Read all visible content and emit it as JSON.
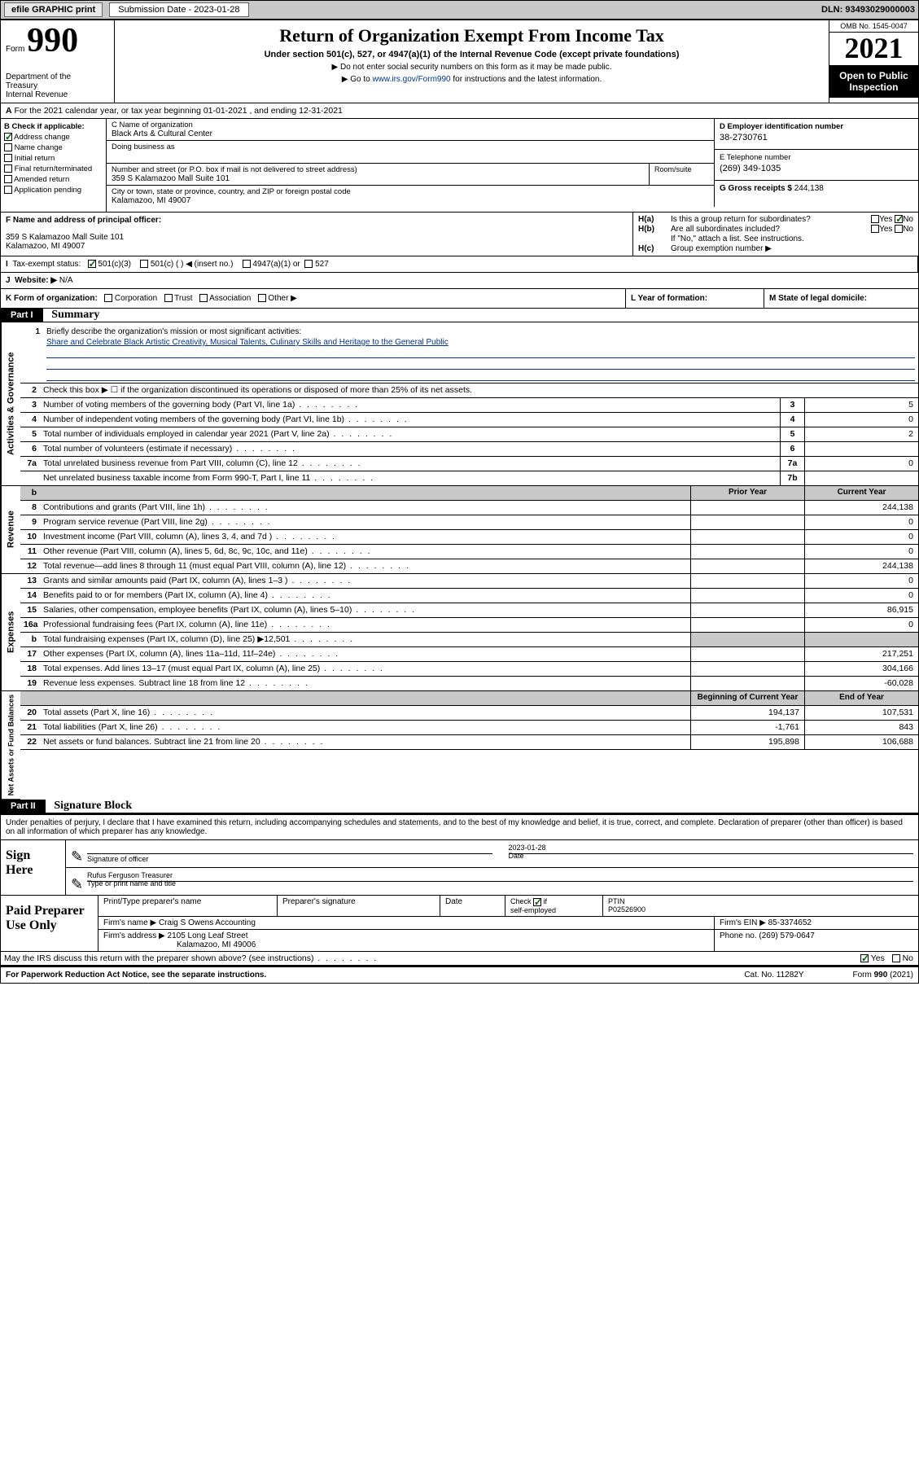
{
  "topbar": {
    "efile": "efile GRAPHIC print",
    "submission_label": "Submission Date - 2023-01-28",
    "dln_label": "DLN: 93493029000003"
  },
  "header": {
    "form_label": "Form",
    "form_number": "990",
    "title": "Return of Organization Exempt From Income Tax",
    "subtitle": "Under section 501(c), 527, or 4947(a)(1) of the Internal Revenue Code (except private foundations)",
    "note1": "Do not enter social security numbers on this form as it may be made public.",
    "note2_prefix": "Go to ",
    "note2_link": "www.irs.gov/Form990",
    "note2_suffix": " for instructions and the latest information.",
    "dept": "Department of the Treasury\nInternal Revenue Service",
    "omb": "OMB No. 1545-0047",
    "year": "2021",
    "open_public": "Open to Public Inspection"
  },
  "line_a": {
    "prefix": "A",
    "text": "For the 2021 calendar year, or tax year beginning 01-01-2021    , and ending 12-31-2021"
  },
  "section_b": {
    "label": "B Check if applicable:",
    "items": [
      "Address change",
      "Name change",
      "Initial return",
      "Final return/terminated",
      "Amended return",
      "Application pending"
    ],
    "checked_idx": 0
  },
  "section_c": {
    "name_label": "C Name of organization",
    "name": "Black Arts & Cultural Center",
    "dba_label": "Doing business as",
    "addr_label": "Number and street (or P.O. box if mail is not delivered to street address)",
    "addr": "359 S Kalamazoo Mall Suite 101",
    "room_label": "Room/suite",
    "city_label": "City or town, state or province, country, and ZIP or foreign postal code",
    "city": "Kalamazoo, MI  49007"
  },
  "section_d": {
    "ein_label": "D Employer identification number",
    "ein": "38-2730761",
    "phone_label": "E Telephone number",
    "phone": "(269) 349-1035",
    "gross_label": "G Gross receipts $",
    "gross": "244,138"
  },
  "section_f": {
    "label": "F  Name and address of principal officer:",
    "addr1": "359 S Kalamazoo Mall Suite 101",
    "addr2": "Kalamazoo, MI  49007"
  },
  "section_h": {
    "ha_label": "H(a)",
    "ha_text": "Is this a group return for subordinates?",
    "hb_label": "H(b)",
    "hb_text": "Are all subordinates included?",
    "hb_note": "If \"No,\" attach a list. See instructions.",
    "hc_label": "H(c)",
    "hc_text": "Group exemption number ▶",
    "yes": "Yes",
    "no": "No"
  },
  "section_i": {
    "label": "I",
    "text": "Tax-exempt status:",
    "opt1": "501(c)(3)",
    "opt2": "501(c) (   ) ◀ (insert no.)",
    "opt3": "4947(a)(1) or",
    "opt4": "527"
  },
  "section_j": {
    "label": "J",
    "text": "Website: ▶",
    "val": "N/A"
  },
  "section_k": {
    "label": "K Form of organization:",
    "opts": [
      "Corporation",
      "Trust",
      "Association",
      "Other ▶"
    ],
    "l_label": "L Year of formation:",
    "m_label": "M State of legal domicile:"
  },
  "part1": {
    "header": "Part I",
    "title": "Summary"
  },
  "tabs": {
    "gov": "Activities & Governance",
    "rev": "Revenue",
    "exp": "Expenses",
    "net": "Net Assets or Fund Balances"
  },
  "q1": {
    "num": "1",
    "text": "Briefly describe the organization's mission or most significant activities:",
    "mission": "Share and Celebrate Black Artistic Creativity, Musical Talents, Culinary Skills and Heritage to the General Public"
  },
  "q2": {
    "num": "2",
    "text": "Check this box ▶ ☐  if the organization discontinued its operations or disposed of more than 25% of its net assets."
  },
  "rows_gov": [
    {
      "num": "3",
      "text": "Number of voting members of the governing body (Part VI, line 1a)",
      "ln": "3",
      "val": "5"
    },
    {
      "num": "4",
      "text": "Number of independent voting members of the governing body (Part VI, line 1b)",
      "ln": "4",
      "val": "0"
    },
    {
      "num": "5",
      "text": "Total number of individuals employed in calendar year 2021 (Part V, line 2a)",
      "ln": "5",
      "val": "2"
    },
    {
      "num": "6",
      "text": "Total number of volunteers (estimate if necessary)",
      "ln": "6",
      "val": ""
    },
    {
      "num": "7a",
      "text": "Total unrelated business revenue from Part VIII, column (C), line 12",
      "ln": "7a",
      "val": "0"
    },
    {
      "num": "",
      "text": "Net unrelated business taxable income from Form 990-T, Part I, line 11",
      "ln": "7b",
      "val": ""
    }
  ],
  "col_hdrs": {
    "prior": "Prior Year",
    "current": "Current Year",
    "boc": "Beginning of Current Year",
    "eoy": "End of Year"
  },
  "rows_rev": [
    {
      "num": "8",
      "text": "Contributions and grants (Part VIII, line 1h)",
      "prior": "",
      "current": "244,138"
    },
    {
      "num": "9",
      "text": "Program service revenue (Part VIII, line 2g)",
      "prior": "",
      "current": "0"
    },
    {
      "num": "10",
      "text": "Investment income (Part VIII, column (A), lines 3, 4, and 7d )",
      "prior": "",
      "current": "0"
    },
    {
      "num": "11",
      "text": "Other revenue (Part VIII, column (A), lines 5, 6d, 8c, 9c, 10c, and 11e)",
      "prior": "",
      "current": "0"
    },
    {
      "num": "12",
      "text": "Total revenue—add lines 8 through 11 (must equal Part VIII, column (A), line 12)",
      "prior": "",
      "current": "244,138"
    }
  ],
  "rows_exp": [
    {
      "num": "13",
      "text": "Grants and similar amounts paid (Part IX, column (A), lines 1–3 )",
      "prior": "",
      "current": "0"
    },
    {
      "num": "14",
      "text": "Benefits paid to or for members (Part IX, column (A), line 4)",
      "prior": "",
      "current": "0"
    },
    {
      "num": "15",
      "text": "Salaries, other compensation, employee benefits (Part IX, column (A), lines 5–10)",
      "prior": "",
      "current": "86,915"
    },
    {
      "num": "16a",
      "text": "Professional fundraising fees (Part IX, column (A), line 11e)",
      "prior": "",
      "current": "0"
    },
    {
      "num": "b",
      "text": "Total fundraising expenses (Part IX, column (D), line 25) ▶12,501",
      "prior": "shade",
      "current": "shade"
    },
    {
      "num": "17",
      "text": "Other expenses (Part IX, column (A), lines 11a–11d, 11f–24e)",
      "prior": "",
      "current": "217,251"
    },
    {
      "num": "18",
      "text": "Total expenses. Add lines 13–17 (must equal Part IX, column (A), line 25)",
      "prior": "",
      "current": "304,166"
    },
    {
      "num": "19",
      "text": "Revenue less expenses. Subtract line 18 from line 12",
      "prior": "",
      "current": "-60,028"
    }
  ],
  "rows_net": [
    {
      "num": "20",
      "text": "Total assets (Part X, line 16)",
      "prior": "194,137",
      "current": "107,531"
    },
    {
      "num": "21",
      "text": "Total liabilities (Part X, line 26)",
      "prior": "-1,761",
      "current": "843"
    },
    {
      "num": "22",
      "text": "Net assets or fund balances. Subtract line 21 from line 20",
      "prior": "195,898",
      "current": "106,688"
    }
  ],
  "part2": {
    "header": "Part II",
    "title": "Signature Block",
    "declare": "Under penalties of perjury, I declare that I have examined this return, including accompanying schedules and statements, and to the best of my knowledge and belief, it is true, correct, and complete. Declaration of preparer (other than officer) is based on all information of which preparer has any knowledge."
  },
  "sign": {
    "label": "Sign Here",
    "sig_officer": "Signature of officer",
    "date": "Date",
    "date_val": "2023-01-28",
    "name_title": "Rufus Ferguson Treasurer",
    "name_label": "Type or print name and title"
  },
  "prep": {
    "label": "Paid Preparer Use Only",
    "print_name": "Print/Type preparer's name",
    "prep_sig": "Preparer's signature",
    "date": "Date",
    "check_label": "Check ☑ if self-employed",
    "ptin_label": "PTIN",
    "ptin": "P02526900",
    "firm_name_label": "Firm's name    ▶",
    "firm_name": "Craig S Owens Accounting",
    "firm_ein_label": "Firm's EIN ▶",
    "firm_ein": "85-3374652",
    "firm_addr_label": "Firm's address ▶",
    "firm_addr1": "2105 Long Leaf Street",
    "firm_addr2": "Kalamazoo, MI  49006",
    "phone_label": "Phone no.",
    "phone": "(269) 579-0647"
  },
  "may_irs": {
    "text": "May the IRS discuss this return with the preparer shown above? (see instructions)",
    "yes": "Yes",
    "no": "No"
  },
  "footer": {
    "left": "For Paperwork Reduction Act Notice, see the separate instructions.",
    "mid": "Cat. No. 11282Y",
    "right": "Form 990 (2021)"
  }
}
